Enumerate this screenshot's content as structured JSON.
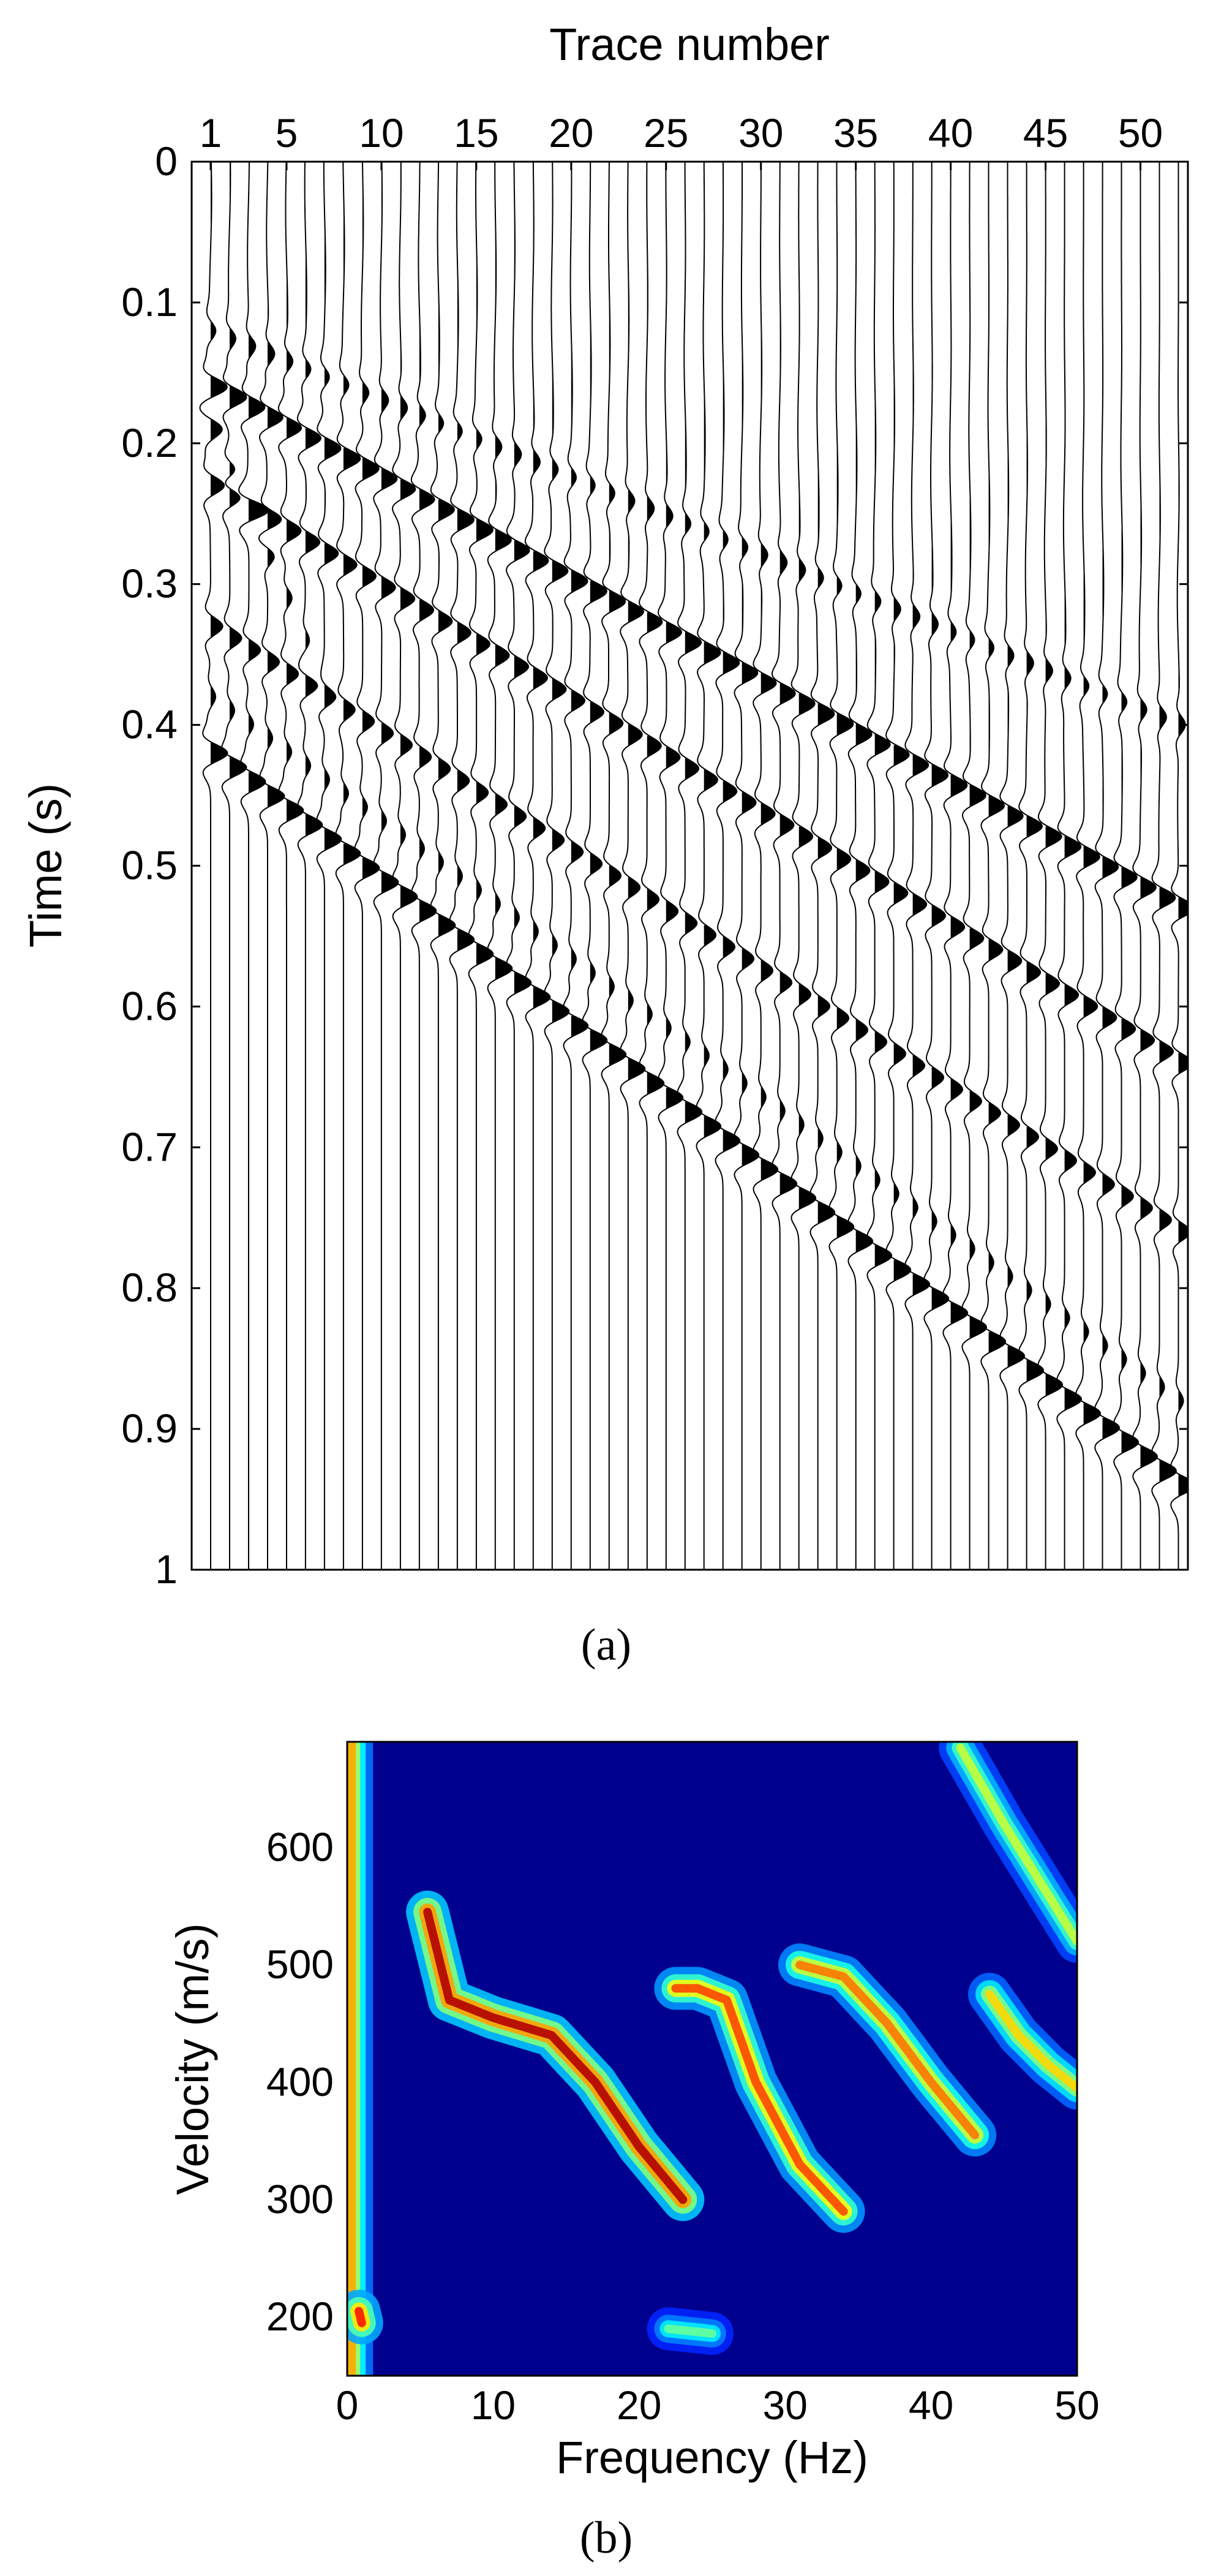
{
  "figure": {
    "panels": [
      "(a)",
      "(b)"
    ]
  },
  "chart_data": [
    {
      "type": "line",
      "subtype": "seismic-wiggle",
      "panel_label": "(a)",
      "xlabel": "Trace number",
      "ylabel": "Time (s)",
      "x_axis_position": "top",
      "y_axis_reversed": true,
      "xlim": [
        0,
        52.5
      ],
      "ylim": [
        0,
        1
      ],
      "x_ticks": [
        1,
        5,
        10,
        15,
        20,
        25,
        30,
        35,
        40,
        45,
        50
      ],
      "y_ticks": [
        0,
        0.1,
        0.2,
        0.3,
        0.4,
        0.5,
        0.6,
        0.7,
        0.8,
        0.9,
        1
      ],
      "y_tick_labels": [
        "0",
        "0.1",
        "0.2",
        "0.3",
        "0.4",
        "0.5",
        "0.6",
        "0.7",
        "0.8",
        "0.9",
        "1"
      ],
      "trace_count": 52,
      "grid": false,
      "events": [
        {
          "t0": 0.16,
          "t_end": 0.53,
          "amp": 1.6
        },
        {
          "t0": 0.23,
          "t_end": 0.64,
          "amp": 1.4
        },
        {
          "t0": 0.33,
          "t_end": 0.76,
          "amp": 1.2
        },
        {
          "t0": 0.42,
          "t_end": 0.94,
          "amp": 1.7
        },
        {
          "t0": 0.12,
          "t_end": 0.4,
          "amp": 0.6
        },
        {
          "t0": 0.38,
          "t_end": 0.88,
          "amp": 0.5
        }
      ],
      "direct_wave": {
        "t0": 0.19,
        "slope_per_trace": 0.03,
        "amp": 1.1
      }
    },
    {
      "type": "heatmap",
      "panel_label": "(b)",
      "xlabel": "Frequency (Hz)",
      "ylabel": "Velocity (m/s)",
      "xlim": [
        0,
        50
      ],
      "ylim": [
        150,
        690
      ],
      "x_ticks": [
        0,
        10,
        20,
        30,
        40,
        50
      ],
      "y_ticks": [
        200,
        300,
        400,
        500,
        600
      ],
      "colormap": "jet",
      "colors": {
        "low": "#00008f",
        "mid": "#00ffff",
        "high": "#800000"
      },
      "ridges": [
        {
          "mode": "fundamental",
          "points": [
            [
              5.5,
              545
            ],
            [
              7,
              470
            ],
            [
              10,
              455
            ],
            [
              14,
              440
            ],
            [
              17,
              400
            ],
            [
              20,
              345
            ],
            [
              23,
              300
            ]
          ],
          "amp": 1.0
        },
        {
          "mode": "first-higher",
          "points": [
            [
              22.5,
              480
            ],
            [
              24,
              480
            ],
            [
              26,
              470
            ],
            [
              28,
              400
            ],
            [
              31,
              330
            ],
            [
              34,
              290
            ]
          ],
          "amp": 0.85
        },
        {
          "mode": "second-higher",
          "points": [
            [
              31,
              500
            ],
            [
              34,
              490
            ],
            [
              37,
              450
            ],
            [
              40,
              400
            ],
            [
              43,
              355
            ]
          ],
          "amp": 0.8
        },
        {
          "mode": "third-higher",
          "points": [
            [
              44,
              475
            ],
            [
              46,
              440
            ],
            [
              48,
              415
            ],
            [
              50,
              395
            ]
          ],
          "amp": 0.7
        }
      ],
      "secondary_features": [
        {
          "points": [
            [
              42,
              685
            ],
            [
              45,
              620
            ],
            [
              50,
              520
            ]
          ],
          "amp": 0.6
        },
        {
          "points": [
            [
              0.3,
              150
            ],
            [
              0.3,
              690
            ]
          ],
          "amp": 0.75
        },
        {
          "points": [
            [
              0.8,
              205
            ],
            [
              1.0,
              195
            ]
          ],
          "amp": 0.9
        },
        {
          "points": [
            [
              22,
              190
            ],
            [
              25,
              186
            ]
          ],
          "amp": 0.5
        }
      ]
    }
  ]
}
